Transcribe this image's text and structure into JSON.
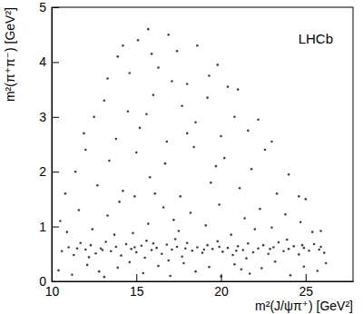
{
  "chart_data": {
    "type": "scatter",
    "x_label": "m²(J/ψπ⁺) [GeV²]",
    "y_label": "m²(π⁺π⁻) [GeV²]",
    "annotations": [
      "LHCb"
    ],
    "xlim": [
      10,
      27.8
    ],
    "ylim": [
      0,
      5
    ],
    "xticks": [
      10,
      15,
      20,
      25
    ],
    "yticks": [
      0,
      1,
      2,
      3,
      4,
      5
    ],
    "color": "#000000",
    "marker": "dot",
    "x": [
      10.6,
      11.0,
      11.3,
      11.7,
      12.0,
      12.3,
      12.6,
      12.9,
      13.2,
      13.5,
      13.8,
      14.1,
      14.4,
      14.7,
      15.0,
      15.3,
      15.6,
      15.9,
      16.2,
      16.5,
      16.8,
      17.1,
      17.4,
      17.7,
      18.0,
      18.3,
      18.6,
      18.9,
      19.2,
      19.5,
      19.8,
      20.1,
      20.4,
      20.7,
      21.0,
      21.3,
      21.6,
      21.9,
      22.2,
      22.5,
      22.8,
      23.1,
      23.4,
      23.7,
      24.0,
      24.3,
      24.6,
      24.9,
      25.2,
      25.5,
      25.8,
      26.1,
      11.5,
      13.0,
      14.9,
      16.0,
      17.9,
      19.0,
      20.9,
      22.9,
      24.8,
      25.9,
      12.2,
      17.3,
      21.5,
      23.9,
      15.5,
      19.9,
      10.4,
      11.2,
      12.1,
      13.1,
      13.9,
      14.6,
      15.4,
      16.3,
      17.0,
      17.8,
      18.5,
      19.3,
      20.0,
      20.8,
      21.7,
      22.4,
      23.2,
      24.1,
      24.9,
      25.7,
      26.2,
      12.8,
      16.9,
      21.2,
      10.5,
      10.9,
      11.6,
      12.4,
      13.3,
      14.0,
      14.8,
      15.7,
      16.6,
      17.5,
      18.2,
      19.1,
      19.9,
      20.6,
      21.4,
      22.3,
      23.0,
      23.8,
      24.7,
      25.4,
      25.9,
      13.7,
      17.2,
      22.0,
      10.8,
      11.4,
      12.0,
      12.7,
      13.4,
      14.2,
      15.0,
      15.8,
      16.7,
      17.6,
      18.4,
      19.4,
      20.2,
      21.1,
      21.8,
      22.6,
      23.3,
      24.0,
      24.6,
      25.0,
      14.9,
      19.7,
      16.1,
      11.9,
      12.5,
      13.1,
      13.8,
      14.5,
      15.2,
      16.0,
      16.8,
      17.7,
      18.5,
      19.2,
      20.0,
      20.8,
      21.6,
      22.2,
      23.0,
      15.6,
      18.0,
      13.3,
      13.9,
      14.6,
      15.1,
      15.7,
      16.3,
      16.9,
      17.4,
      18.0,
      18.6,
      19.3,
      19.8,
      20.4,
      15.9,
      17.1,
      14.2,
      21.0
    ],
    "values": [
      0.55,
      0.62,
      0.48,
      0.7,
      0.58,
      0.66,
      0.51,
      0.6,
      0.72,
      0.55,
      0.63,
      0.47,
      0.68,
      0.59,
      0.53,
      0.65,
      0.74,
      0.57,
      0.61,
      0.5,
      0.67,
      0.58,
      0.63,
      0.45,
      0.7,
      0.56,
      0.62,
      0.52,
      0.66,
      0.59,
      0.73,
      0.54,
      0.61,
      0.48,
      0.64,
      0.57,
      0.69,
      0.53,
      0.6,
      0.66,
      0.5,
      0.62,
      0.71,
      0.55,
      0.59,
      0.64,
      0.49,
      0.61,
      0.56,
      0.68,
      0.58,
      0.52,
      0.6,
      0.57,
      0.62,
      0.69,
      0.6,
      0.58,
      0.56,
      0.59,
      0.66,
      0.63,
      0.44,
      0.77,
      0.42,
      0.76,
      0.43,
      0.63,
      0.2,
      0.12,
      0.3,
      0.08,
      0.25,
      0.35,
      0.15,
      0.28,
      0.1,
      0.33,
      0.18,
      0.26,
      0.09,
      0.31,
      0.14,
      0.24,
      0.36,
      0.11,
      0.27,
      0.19,
      0.33,
      0.18,
      0.38,
      0.22,
      1.1,
      0.9,
      1.3,
      0.95,
      1.2,
      1.45,
      0.88,
      1.05,
      1.35,
      0.92,
      1.25,
      1.02,
      1.4,
      0.85,
      1.15,
      1.32,
      0.98,
      1.22,
      1.08,
      0.9,
      0.92,
      0.85,
      1.12,
      0.95,
      1.6,
      2.0,
      2.4,
      1.75,
      2.2,
      1.65,
      2.35,
      1.9,
      2.15,
      1.55,
      2.45,
      1.8,
      2.25,
      1.7,
      2.05,
      2.4,
      1.6,
      1.95,
      1.55,
      1.5,
      1.55,
      2.1,
      1.6,
      2.7,
      3.0,
      3.3,
      2.6,
      3.1,
      2.8,
      3.4,
      2.55,
      3.2,
      2.9,
      3.35,
      2.65,
      3.0,
      2.75,
      2.95,
      2.55,
      3.05,
      2.7,
      3.7,
      4.1,
      3.8,
      4.4,
      4.6,
      3.9,
      4.5,
      4.2,
      3.6,
      4.3,
      3.75,
      3.95,
      3.55,
      4.15,
      3.65,
      4.3,
      3.5
    ]
  }
}
